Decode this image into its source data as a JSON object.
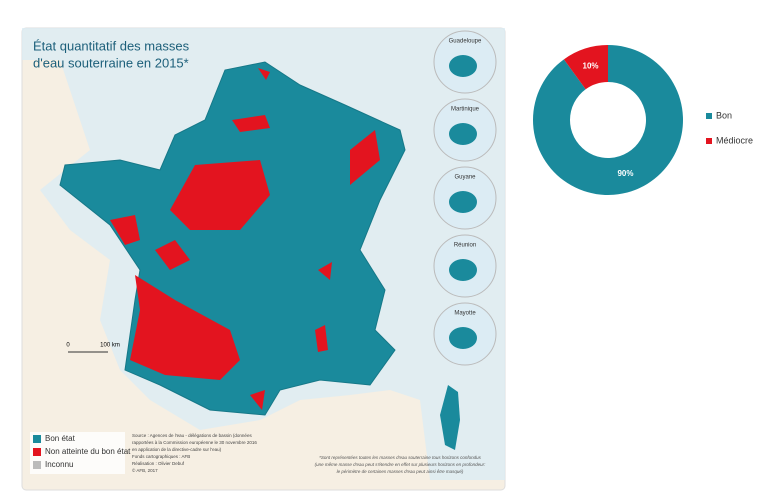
{
  "map": {
    "title_line1": "État quantitatif des masses",
    "title_line2": "d'eau souterraine en 2015*",
    "legend": [
      "Bon état",
      "Non atteinte du bon état",
      "Inconnu"
    ],
    "insets": [
      "Guadeloupe",
      "Martinique",
      "Guyane",
      "Réunion",
      "Mayotte"
    ],
    "scale": [
      "0",
      "100 km"
    ],
    "source": [
      "Source : Agences de l'eau - délégations de bassin (données",
      "rapportées à la Commission européenne le 30 novembre 2016",
      "en application de la directive-cadre sur l'eau)",
      "Fonds cartographiques : AFB",
      "Réalisation : Olivier Debuf",
      "© AFB, 2017"
    ],
    "footnote": [
      "*Sont représentées toutes les masses d'eau souterraine tous horizons confondus",
      "(une même masse d'eau peut s'étendre en effet sur plusieurs horizons en profondeur:",
      "le périmètre de certaines masses d'eau peut ainsi être masqué)"
    ]
  },
  "chart_data": {
    "type": "donut",
    "categories": [
      "Bon",
      "Médiocre"
    ],
    "values": [
      90,
      10
    ],
    "value_labels": [
      "90%",
      "10%"
    ],
    "colors": [
      "#1a8a9c",
      "#e3141f"
    ]
  }
}
